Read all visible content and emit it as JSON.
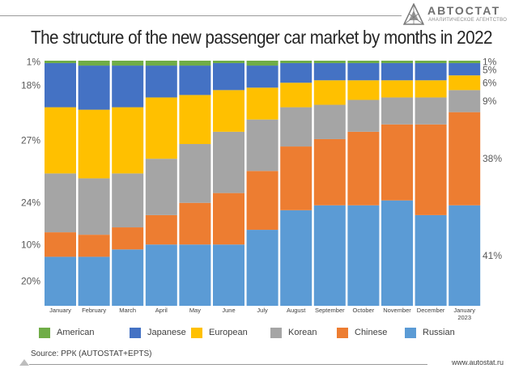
{
  "logo": {
    "name": "АВТОСТАТ",
    "subtitle": "АНАЛИТИЧЕСКОЕ АГЕНТСТВО"
  },
  "source": "Source: РРК (AUTOSTAT+EPTS)",
  "website": "www.autostat.ru",
  "colors": {
    "American": "#70ad47",
    "Japanese": "#4472c4",
    "European": "#ffc000",
    "Korean": "#a5a5a5",
    "Chinese": "#ed7d31",
    "Russian": "#5b9bd5"
  },
  "chart_data": {
    "type": "bar",
    "stacked": true,
    "percent": true,
    "title": "The structure of the new passenger car market by months in 2022",
    "categories": [
      "January",
      "February",
      "March",
      "April",
      "May",
      "June",
      "July",
      "August",
      "September",
      "October",
      "November",
      "December",
      "January 2023"
    ],
    "series": [
      {
        "name": "Russian",
        "values": [
          20,
          20,
          23,
          25,
          25,
          25,
          31,
          39,
          41,
          41,
          43,
          37,
          41
        ]
      },
      {
        "name": "Chinese",
        "values": [
          10,
          9,
          9,
          12,
          17,
          21,
          24,
          26,
          27,
          30,
          31,
          37,
          38
        ]
      },
      {
        "name": "Korean",
        "values": [
          24,
          23,
          22,
          23,
          24,
          25,
          21,
          16,
          14,
          13,
          11,
          11,
          9
        ]
      },
      {
        "name": "European",
        "values": [
          27,
          28,
          27,
          25,
          20,
          17,
          13,
          10,
          10,
          8,
          7,
          7,
          6
        ]
      },
      {
        "name": "Japanese",
        "values": [
          18,
          18,
          17,
          13,
          12,
          11,
          9,
          8,
          7,
          7,
          7,
          7,
          5
        ]
      },
      {
        "name": "American",
        "values": [
          1,
          2,
          2,
          2,
          2,
          1,
          2,
          1,
          1,
          1,
          1,
          1,
          1
        ]
      }
    ],
    "left_labels": [
      {
        "series": "Russian",
        "text": "20%"
      },
      {
        "series": "Chinese",
        "text": "10%"
      },
      {
        "series": "Korean",
        "text": "24%"
      },
      {
        "series": "European",
        "text": "27%"
      },
      {
        "series": "Japanese",
        "text": "18%"
      },
      {
        "series": "American",
        "text": "1%"
      }
    ],
    "right_labels": [
      {
        "series": "Russian",
        "text": "41%"
      },
      {
        "series": "Chinese",
        "text": "38%"
      },
      {
        "series": "Korean",
        "text": "9%"
      },
      {
        "series": "European",
        "text": "6%"
      },
      {
        "series": "Japanese",
        "text": "5%"
      },
      {
        "series": "American",
        "text": "1%"
      }
    ],
    "legend": [
      "American",
      "Japanese",
      "European",
      "Korean",
      "Chinese",
      "Russian"
    ],
    "ylim": [
      0,
      100
    ]
  }
}
